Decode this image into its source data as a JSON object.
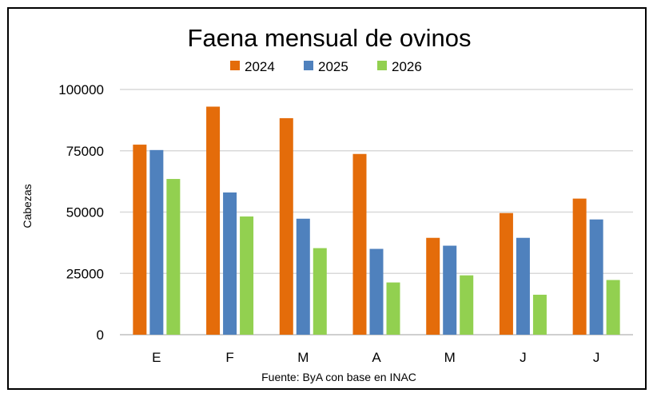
{
  "chart_data": {
    "type": "bar",
    "title": "Faena mensual de ovinos",
    "ylabel": "Cabezas",
    "xlabel": "",
    "source": "Fuente: ByA con base en INAC",
    "categories": [
      "E",
      "F",
      "M",
      "A",
      "M",
      "J",
      "J"
    ],
    "series": [
      {
        "name": "2024",
        "color": "#E46C0A",
        "values": [
          77500,
          93000,
          88300,
          73700,
          39500,
          49600,
          55500
        ]
      },
      {
        "name": "2025",
        "color": "#4F81BD",
        "values": [
          75300,
          58000,
          47300,
          35000,
          36300,
          39500,
          47000
        ]
      },
      {
        "name": "2026",
        "color": "#92D050",
        "values": [
          63500,
          48200,
          35300,
          21300,
          24200,
          16300,
          22300
        ]
      }
    ],
    "ylim": [
      0,
      100000
    ],
    "yticks": [
      0,
      25000,
      50000,
      75000,
      100000
    ],
    "grid": true,
    "legend": "top-center"
  }
}
